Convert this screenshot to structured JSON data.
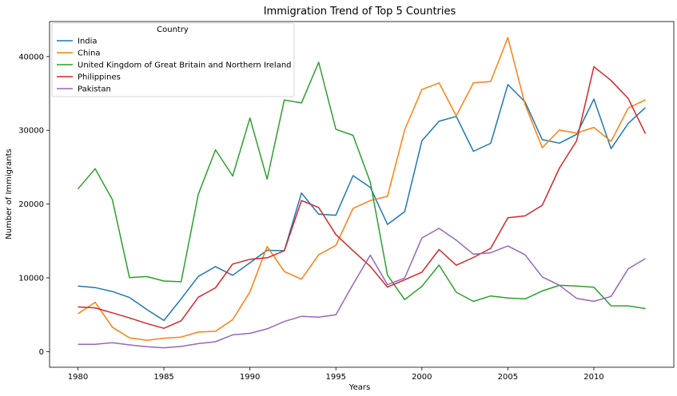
{
  "chart_data": {
    "type": "line",
    "title": "Immigration Trend of Top 5 Countries",
    "xlabel": "Years",
    "ylabel": "Number of Immigrants",
    "xlim": [
      1978.35,
      2014.65
    ],
    "ylim": [
      -2130,
      44750
    ],
    "x_ticks": [
      1980,
      1985,
      1990,
      1995,
      2000,
      2005,
      2010
    ],
    "y_ticks": [
      0,
      10000,
      20000,
      30000,
      40000
    ],
    "x_tick_labels": [
      "1980",
      "1985",
      "1990",
      "1995",
      "2000",
      "2005",
      "2010"
    ],
    "y_tick_labels": [
      "0",
      "10000",
      "20000",
      "30000",
      "40000"
    ],
    "grid": false,
    "legend": {
      "title": "Country",
      "placement": "top-left"
    },
    "x": [
      1980,
      1981,
      1982,
      1983,
      1984,
      1985,
      1986,
      1987,
      1988,
      1989,
      1990,
      1991,
      1992,
      1993,
      1994,
      1995,
      1996,
      1997,
      1998,
      1999,
      2000,
      2001,
      2002,
      2003,
      2004,
      2005,
      2006,
      2007,
      2008,
      2009,
      2010,
      2011,
      2012,
      2013
    ],
    "series": [
      {
        "name": "India",
        "color": "#1f77b4",
        "values": [
          8880,
          8670,
          8147,
          7338,
          5704,
          4211,
          7150,
          10189,
          11522,
          10343,
          12041,
          13734,
          13673,
          21496,
          18620,
          18489,
          23859,
          22268,
          17241,
          18974,
          28572,
          31223,
          31889,
          27155,
          28235,
          36210,
          33848,
          28742,
          28261,
          29456,
          34235,
          27509,
          30933,
          33087
        ]
      },
      {
        "name": "China",
        "color": "#ff7f0e",
        "values": [
          5123,
          6682,
          3308,
          1863,
          1527,
          1816,
          1960,
          2643,
          2758,
          4323,
          8076,
          14255,
          10846,
          9817,
          13128,
          14398,
          19415,
          20475,
          21049,
          30069,
          35529,
          36434,
          31961,
          36439,
          36619,
          42584,
          33518,
          27642,
          30037,
          29622,
          30391,
          28502,
          33024,
          34129
        ]
      },
      {
        "name": "United Kingdom of Great Britain and Northern Ireland",
        "color": "#2ca02c",
        "values": [
          22045,
          24796,
          20620,
          10015,
          10170,
          9564,
          9470,
          21337,
          27359,
          23795,
          31668,
          23380,
          34123,
          33720,
          39231,
          30145,
          29322,
          22965,
          10367,
          7045,
          8840,
          11728,
          8046,
          6797,
          7533,
          7258,
          7140,
          8216,
          8979,
          8876,
          8724,
          6204,
          6195,
          5827
        ]
      },
      {
        "name": "Philippines",
        "color": "#d62728",
        "values": [
          6051,
          5921,
          5249,
          4562,
          3801,
          3150,
          4166,
          7360,
          8639,
          11865,
          12509,
          12718,
          13670,
          20479,
          19532,
          15864,
          13692,
          11549,
          8735,
          9734,
          10763,
          13836,
          11707,
          12758,
          14004,
          18139,
          18400,
          19837,
          24887,
          28573,
          38617,
          36765,
          34315,
          29544
        ]
      },
      {
        "name": "Pakistan",
        "color": "#9467bd",
        "values": [
          978,
          972,
          1201,
          900,
          668,
          514,
          691,
          1072,
          1334,
          2261,
          2470,
          3079,
          4071,
          4777,
          4666,
          4994,
          9125,
          13073,
          9068,
          9979,
          15400,
          16708,
          15110,
          13205,
          13399,
          14314,
          13127,
          10124,
          8994,
          7217,
          6811,
          7468,
          11227,
          12603
        ]
      }
    ]
  }
}
